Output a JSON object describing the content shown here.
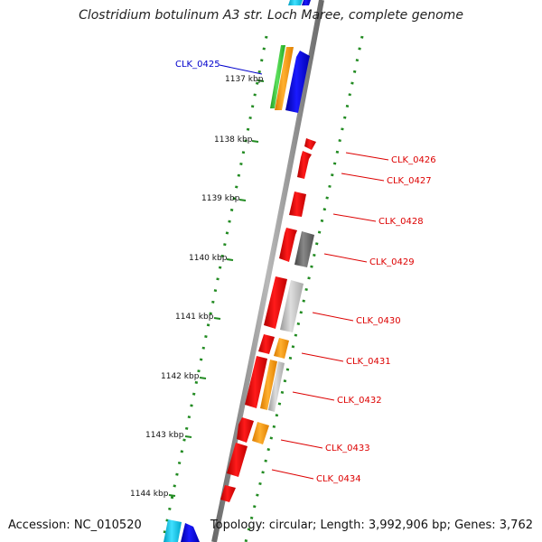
{
  "title": "Clostridium botulinum A3 str. Loch Maree, complete genome",
  "accession": "Accession: NC_010520",
  "topology": "Topology: circular; Length: 3,992,906 bp; Genes: 3,762",
  "ticks": [
    {
      "id": "t1137",
      "label": "1137 kbp"
    },
    {
      "id": "t1138",
      "label": "1138 kbp"
    },
    {
      "id": "t1139",
      "label": "1139 kbp"
    },
    {
      "id": "t1140",
      "label": "1140 kbp"
    },
    {
      "id": "t1141",
      "label": "1141 kbp"
    },
    {
      "id": "t1142",
      "label": "1142 kbp"
    },
    {
      "id": "t1143",
      "label": "1143 kbp"
    },
    {
      "id": "t1144",
      "label": "1144 kbp"
    }
  ],
  "gene_labels": [
    {
      "id": "g0425",
      "label": "CLK_0425",
      "color": "#0000cc"
    },
    {
      "id": "g0426",
      "label": "CLK_0426",
      "color": "#dd0000"
    },
    {
      "id": "g0427",
      "label": "CLK_0427",
      "color": "#dd0000"
    },
    {
      "id": "g0428",
      "label": "CLK_0428",
      "color": "#dd0000"
    },
    {
      "id": "g0429",
      "label": "CLK_0429",
      "color": "#dd0000"
    },
    {
      "id": "g0430",
      "label": "CLK_0430",
      "color": "#dd0000"
    },
    {
      "id": "g0431",
      "label": "CLK_0431",
      "color": "#dd0000"
    },
    {
      "id": "g0432",
      "label": "CLK_0432",
      "color": "#dd0000"
    },
    {
      "id": "g0433",
      "label": "CLK_0433",
      "color": "#dd0000"
    },
    {
      "id": "g0434",
      "label": "CLK_0434",
      "color": "#dd0000"
    }
  ],
  "colors": {
    "backbone": "#8a8a8a",
    "dotted_ring": "#228b22",
    "tick": "#228b22",
    "red_gene": "#ee0000",
    "blue_gene": "#0000ee",
    "cyan_gene": "#00ccee",
    "green_gene": "#33cc33",
    "orange_gene": "#ff9900",
    "light_gray_gene": "#bbbbbb",
    "dark_gray_gene": "#666666"
  }
}
